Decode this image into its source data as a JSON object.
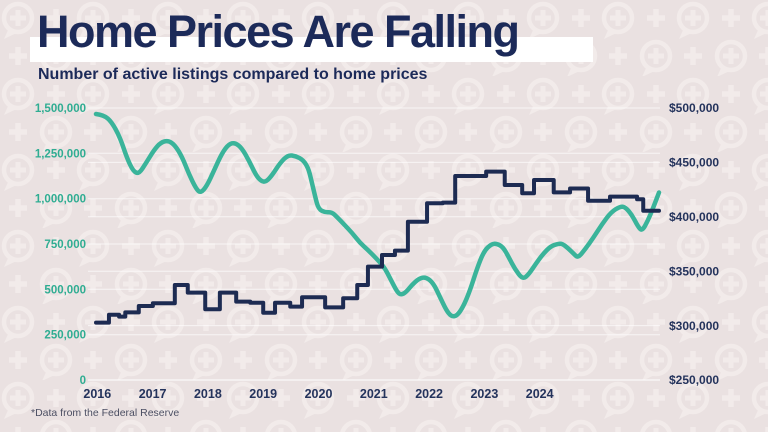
{
  "page": {
    "title": "Home Prices Are Falling",
    "subtitle": "Number of active listings compared to home prices",
    "footnote": "*Data from the Federal Reserve"
  },
  "colors": {
    "background": "#EAE1E1",
    "pattern": "#F2EBEA",
    "navy": "#1D2B52",
    "teal": "#3AB49A",
    "teal_label": "#2FAD92",
    "navy_label": "#24335C",
    "title_text": "#1C2A59",
    "highlight_band": "#FFFFFF",
    "grid": "rgba(255,255,255,0.65)",
    "footnote_text": "#4C4F63"
  },
  "chart_data": {
    "type": "line",
    "title": "Home Prices Are Falling",
    "subtitle": "Number of active listings compared to home prices",
    "grid": true,
    "legend": "none",
    "x_axis": {
      "tick_labels": [
        "2016",
        "2017",
        "2018",
        "2019",
        "2020",
        "2021",
        "2022",
        "2023",
        "2024"
      ]
    },
    "y_axis_left": {
      "name": "Active listings",
      "min": 0,
      "max": 1500000,
      "labels": [
        "1,500,000",
        "1,250,000",
        "1,000,000",
        "750,000",
        "500,000",
        "250,000",
        "0"
      ]
    },
    "y_axis_right": {
      "name": "Home price",
      "min": 250000,
      "max": 500000,
      "labels": [
        "$500,000",
        "$450,000",
        "$400,000",
        "$350,000",
        "$300,000",
        "$250,000"
      ]
    },
    "series": [
      {
        "name": "Number of active listings",
        "axis": "left",
        "style": "smooth",
        "color": "#3AB49A",
        "points": [
          [
            0,
            1467000
          ],
          [
            0.014,
            1461000
          ],
          [
            0.028,
            1423000
          ],
          [
            0.043,
            1335000
          ],
          [
            0.055,
            1224000
          ],
          [
            0.066,
            1152000
          ],
          [
            0.076,
            1136000
          ],
          [
            0.089,
            1197000
          ],
          [
            0.103,
            1268000
          ],
          [
            0.115,
            1310000
          ],
          [
            0.128,
            1321000
          ],
          [
            0.14,
            1296000
          ],
          [
            0.153,
            1230000
          ],
          [
            0.165,
            1136000
          ],
          [
            0.178,
            1053000
          ],
          [
            0.186,
            1031000
          ],
          [
            0.197,
            1070000
          ],
          [
            0.21,
            1158000
          ],
          [
            0.224,
            1252000
          ],
          [
            0.236,
            1301000
          ],
          [
            0.247,
            1309000
          ],
          [
            0.259,
            1279000
          ],
          [
            0.272,
            1208000
          ],
          [
            0.284,
            1130000
          ],
          [
            0.293,
            1097000
          ],
          [
            0.302,
            1092000
          ],
          [
            0.313,
            1130000
          ],
          [
            0.327,
            1197000
          ],
          [
            0.341,
            1241000
          ],
          [
            0.355,
            1235000
          ],
          [
            0.368,
            1213000
          ],
          [
            0.377,
            1169000
          ],
          [
            0.382,
            1108000
          ],
          [
            0.389,
            1015000
          ],
          [
            0.395,
            943000
          ],
          [
            0.407,
            924000
          ],
          [
            0.419,
            926000
          ],
          [
            0.43,
            893000
          ],
          [
            0.44,
            860000
          ],
          [
            0.455,
            811000
          ],
          [
            0.469,
            756000
          ],
          [
            0.483,
            717000
          ],
          [
            0.497,
            673000
          ],
          [
            0.512,
            623000
          ],
          [
            0.524,
            551000
          ],
          [
            0.535,
            485000
          ],
          [
            0.542,
            469000
          ],
          [
            0.551,
            485000
          ],
          [
            0.561,
            524000
          ],
          [
            0.574,
            560000
          ],
          [
            0.586,
            568000
          ],
          [
            0.599,
            535000
          ],
          [
            0.611,
            458000
          ],
          [
            0.622,
            386000
          ],
          [
            0.631,
            350000
          ],
          [
            0.641,
            353000
          ],
          [
            0.652,
            403000
          ],
          [
            0.664,
            491000
          ],
          [
            0.677,
            617000
          ],
          [
            0.689,
            710000
          ],
          [
            0.702,
            750000
          ],
          [
            0.712,
            752000
          ],
          [
            0.723,
            733000
          ],
          [
            0.733,
            678000
          ],
          [
            0.744,
            612000
          ],
          [
            0.758,
            554000
          ],
          [
            0.769,
            584000
          ],
          [
            0.781,
            640000
          ],
          [
            0.794,
            695000
          ],
          [
            0.808,
            739000
          ],
          [
            0.821,
            751000
          ],
          [
            0.828,
            752000
          ],
          [
            0.838,
            728000
          ],
          [
            0.849,
            695000
          ],
          [
            0.856,
            673000
          ],
          [
            0.869,
            722000
          ],
          [
            0.883,
            783000
          ],
          [
            0.899,
            860000
          ],
          [
            0.915,
            926000
          ],
          [
            0.931,
            957000
          ],
          [
            0.94,
            954000
          ],
          [
            0.952,
            910000
          ],
          [
            0.963,
            844000
          ],
          [
            0.97,
            822000
          ],
          [
            0.98,
            877000
          ],
          [
            0.991,
            960000
          ],
          [
            1,
            1034000
          ]
        ]
      },
      {
        "name": "Home prices",
        "axis": "right",
        "style": "step",
        "color": "#1D2B52",
        "t_end": 1,
        "points": [
          [
            0,
            302700
          ],
          [
            0.023,
            310000
          ],
          [
            0.041,
            308200
          ],
          [
            0.052,
            312200
          ],
          [
            0.076,
            318000
          ],
          [
            0.101,
            320500
          ],
          [
            0.14,
            337300
          ],
          [
            0.163,
            330300
          ],
          [
            0.194,
            315000
          ],
          [
            0.22,
            330300
          ],
          [
            0.249,
            322000
          ],
          [
            0.274,
            321000
          ],
          [
            0.297,
            311800
          ],
          [
            0.318,
            321000
          ],
          [
            0.345,
            317400
          ],
          [
            0.366,
            326000
          ],
          [
            0.407,
            316800
          ],
          [
            0.439,
            325100
          ],
          [
            0.464,
            337300
          ],
          [
            0.483,
            354200
          ],
          [
            0.508,
            364900
          ],
          [
            0.531,
            368900
          ],
          [
            0.554,
            395500
          ],
          [
            0.588,
            412400
          ],
          [
            0.616,
            413000
          ],
          [
            0.638,
            437500
          ],
          [
            0.693,
            441500
          ],
          [
            0.726,
            429200
          ],
          [
            0.757,
            421600
          ],
          [
            0.778,
            433800
          ],
          [
            0.813,
            422500
          ],
          [
            0.842,
            426000
          ],
          [
            0.874,
            414800
          ],
          [
            0.913,
            418500
          ],
          [
            0.961,
            416100
          ],
          [
            0.972,
            405600
          ]
        ]
      }
    ]
  }
}
